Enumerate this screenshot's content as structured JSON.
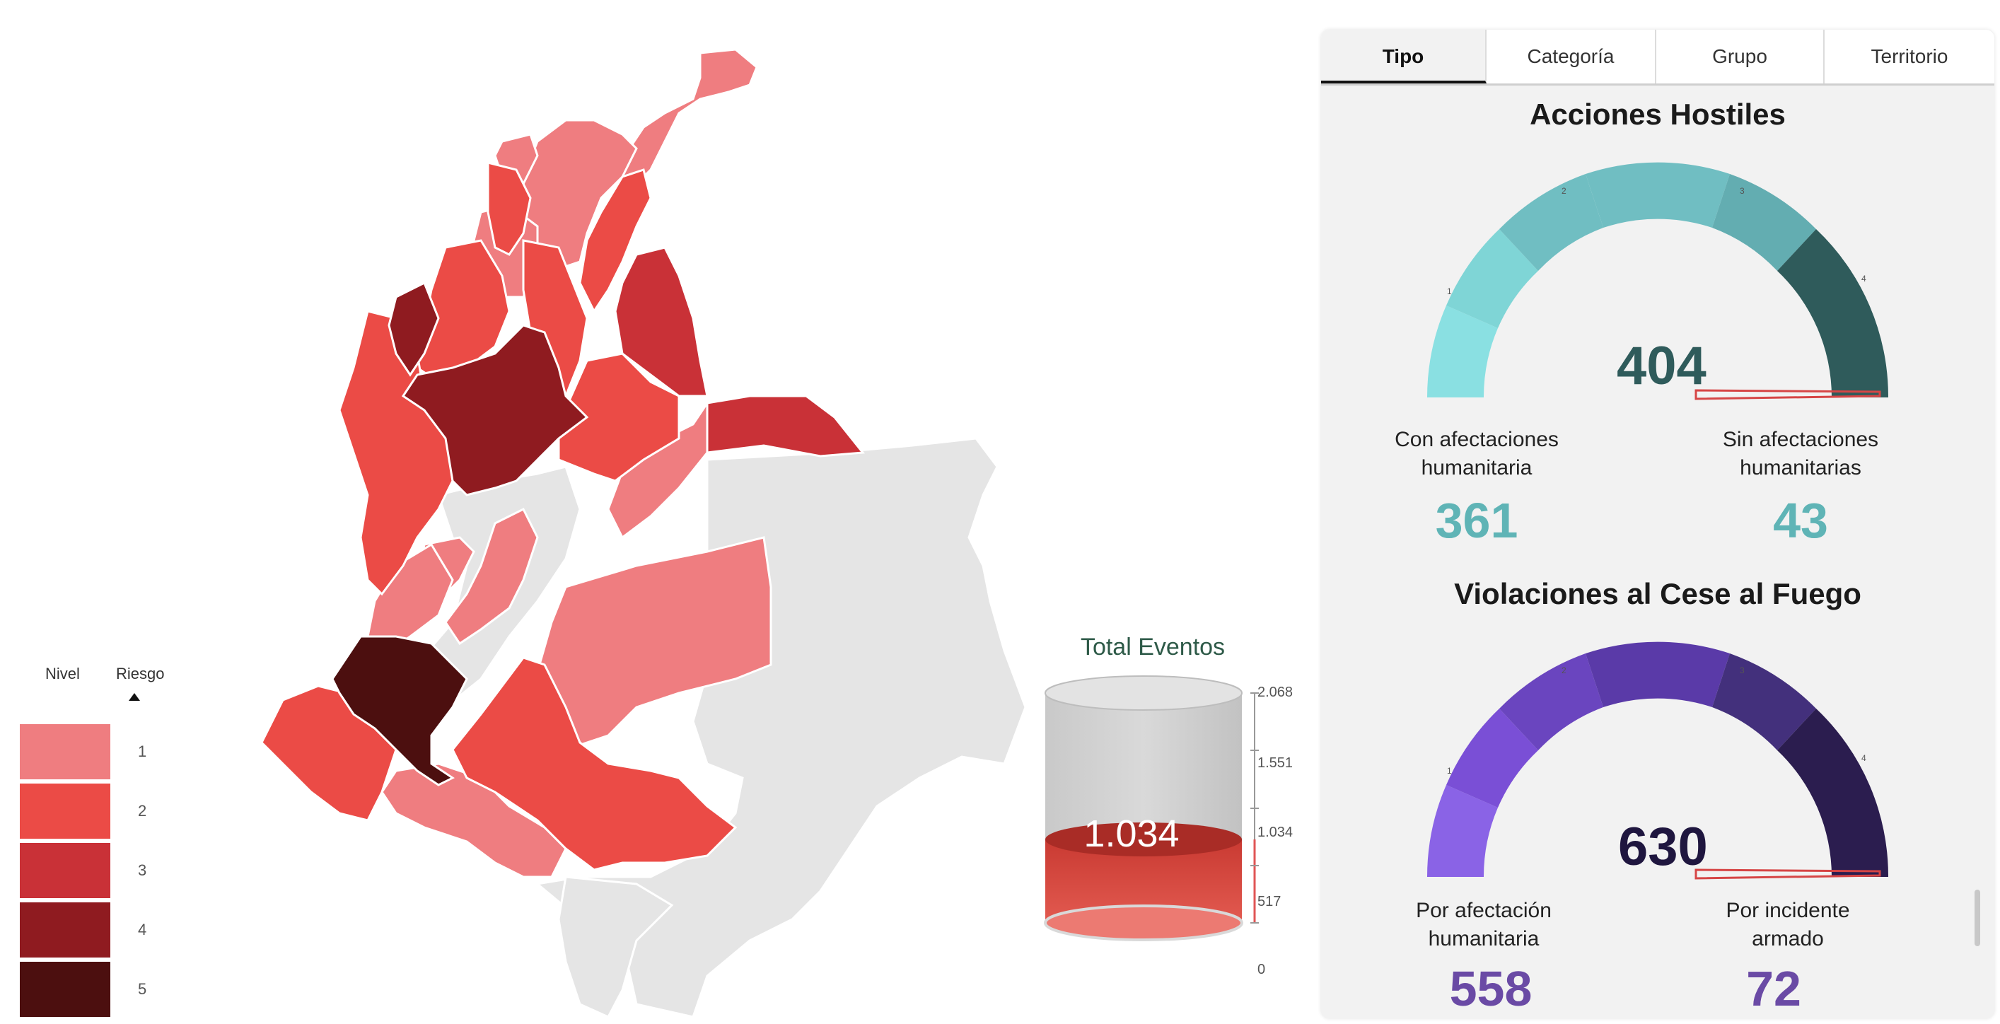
{
  "legend": {
    "header_left": "Nivel",
    "header_right": "Riesgo",
    "levels": [
      "1",
      "2",
      "3",
      "4",
      "5"
    ],
    "colors": [
      "#ef7d80",
      "#eb4b46",
      "#c93137",
      "#8f1b20",
      "#4c0f0f"
    ]
  },
  "total_events": {
    "title": "Total Eventos",
    "value": "1.034",
    "value_number": 1034,
    "max": 2068,
    "ticks": [
      "2.068",
      "1.551",
      "1.034",
      "517",
      "0"
    ]
  },
  "tabs": [
    "Tipo",
    "Categoría",
    "Grupo",
    "Territorio"
  ],
  "active_tab": "Tipo",
  "hostile": {
    "title": "Acciones Hostiles",
    "value": "404",
    "scale": [
      "0",
      "1",
      "2",
      "3",
      "4",
      "5"
    ],
    "colors": [
      "#8ae0e2",
      "#7fd5d6",
      "#70bec2",
      "#63adb1",
      "#4c9195",
      "#2f5b5b"
    ],
    "stat1_label": "Con afectaciones humanitaria",
    "stat1_value": "361",
    "stat2_label": "Sin afectaciones humanitarias",
    "stat2_value": "43",
    "number_color": "#5fb4b6",
    "value_color": "#2f5b5b"
  },
  "ceasefire": {
    "title": "Violaciones al Cese al Fuego",
    "value": "630",
    "scale": [
      "0",
      "1",
      "2",
      "3",
      "4",
      "5"
    ],
    "colors": [
      "#8a63e6",
      "#7a4fd6",
      "#6a45bf",
      "#5a3aa8",
      "#43307c",
      "#2b1d4f"
    ],
    "stat1_label": "Por afectación humanitaria",
    "stat1_value": "558",
    "stat2_label": "Por incidente armado",
    "stat2_value": "72",
    "number_color": "#6a4aa5",
    "value_color": "#1f163f"
  }
}
